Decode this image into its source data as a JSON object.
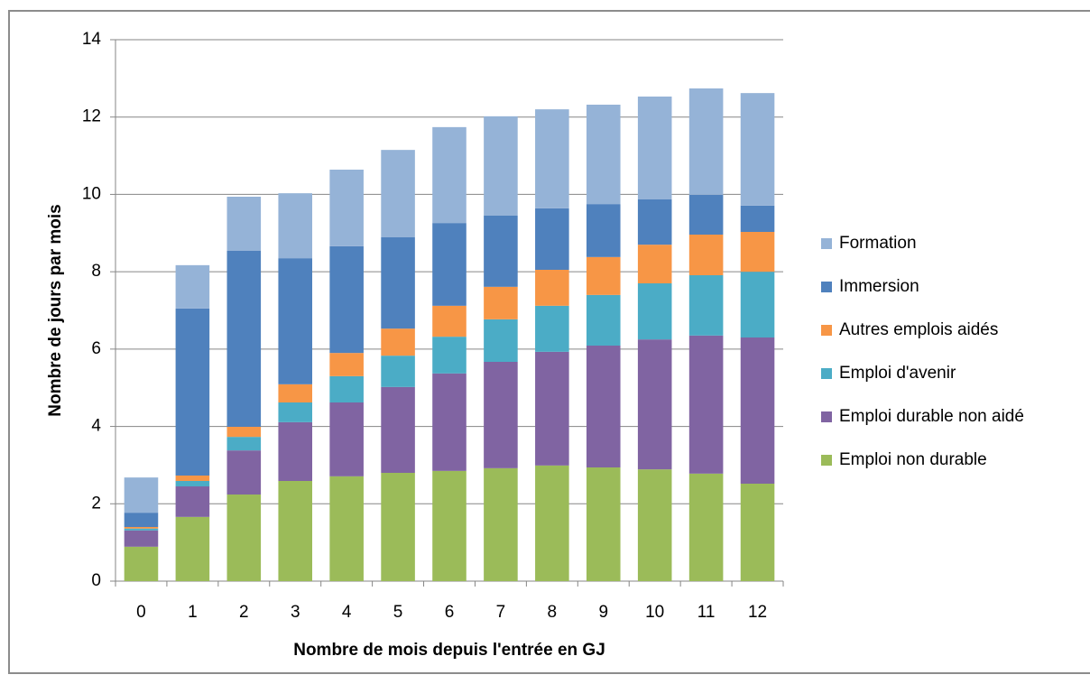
{
  "chart_data": {
    "type": "bar",
    "stacked": true,
    "x_label": "Nombre de mois depuis l'entrée en GJ",
    "y_label": "Nombre de jours par mois",
    "categories": [
      "0",
      "1",
      "2",
      "3",
      "4",
      "5",
      "6",
      "7",
      "8",
      "9",
      "10",
      "11",
      "12"
    ],
    "series": [
      {
        "name": "Emploi non durable",
        "color": "#9bbb59",
        "values": [
          0.89,
          1.66,
          2.24,
          2.59,
          2.71,
          2.8,
          2.85,
          2.92,
          2.99,
          2.94,
          2.89,
          2.78,
          2.52
        ]
      },
      {
        "name": "Emploi durable non aidé",
        "color": "#8064a2",
        "values": [
          0.42,
          0.79,
          1.14,
          1.52,
          1.91,
          2.22,
          2.52,
          2.75,
          2.94,
          3.15,
          3.36,
          3.57,
          3.78
        ]
      },
      {
        "name": "Emploi d'avenir",
        "color": "#4bacc6",
        "values": [
          0.05,
          0.14,
          0.35,
          0.51,
          0.68,
          0.81,
          0.95,
          1.1,
          1.19,
          1.31,
          1.45,
          1.56,
          1.7
        ]
      },
      {
        "name": "Autres emplois aidés",
        "color": "#f79646",
        "values": [
          0.04,
          0.14,
          0.26,
          0.47,
          0.6,
          0.7,
          0.8,
          0.84,
          0.93,
          0.98,
          1.0,
          1.05,
          1.03
        ]
      },
      {
        "name": "Immersion",
        "color": "#4f81bd",
        "values": [
          0.37,
          4.32,
          4.55,
          3.26,
          2.76,
          2.36,
          2.14,
          1.84,
          1.59,
          1.37,
          1.17,
          1.03,
          0.68
        ]
      },
      {
        "name": "Formation",
        "color": "#95b3d7",
        "values": [
          0.91,
          1.12,
          1.4,
          1.68,
          1.98,
          2.26,
          2.48,
          2.57,
          2.56,
          2.57,
          2.66,
          2.75,
          2.91
        ]
      }
    ],
    "ylim": [
      0,
      14
    ],
    "yticks": [
      0,
      2,
      4,
      6,
      8,
      10,
      12,
      14
    ],
    "grid": true,
    "legend": "right"
  }
}
